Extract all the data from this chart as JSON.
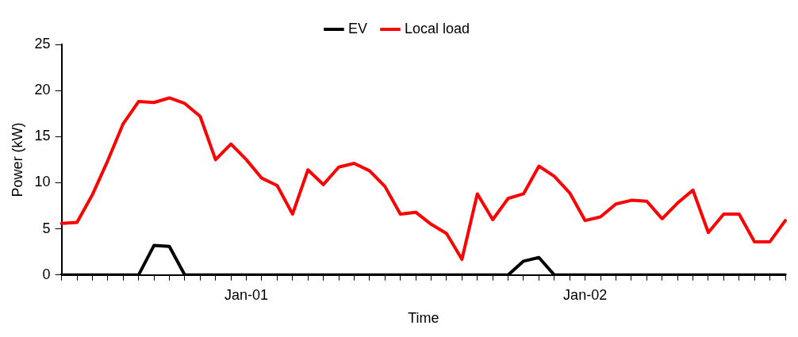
{
  "chart_data": {
    "type": "line",
    "xlabel": "Time",
    "ylabel": "Power (kW)",
    "categories": [
      null,
      null,
      null,
      null,
      null,
      null,
      null,
      null,
      null,
      null,
      null,
      null,
      "Jan-01",
      null,
      null,
      null,
      null,
      null,
      null,
      null,
      null,
      null,
      null,
      null,
      null,
      null,
      null,
      null,
      null,
      null,
      null,
      null,
      null,
      null,
      "Jan-02",
      null,
      null,
      null,
      null,
      null,
      null,
      null,
      null,
      null,
      null,
      null,
      null,
      null
    ],
    "series": [
      {
        "name": "EV",
        "color": "#000000",
        "values": [
          0,
          0,
          0,
          0,
          0,
          0,
          3.2,
          3.1,
          0,
          0,
          0,
          0,
          0,
          0,
          0,
          0,
          0,
          0,
          0,
          0,
          0,
          0,
          0,
          0,
          0,
          0,
          0,
          0,
          0,
          0,
          1.5,
          1.9,
          0,
          0,
          0,
          0,
          0,
          0,
          0,
          0,
          0,
          0,
          0,
          0,
          0,
          0,
          0,
          0
        ]
      },
      {
        "name": "Local load",
        "color": "#ff0000",
        "values": [
          5.6,
          5.7,
          8.7,
          12.4,
          16.4,
          18.8,
          18.7,
          19.2,
          18.6,
          17.2,
          12.5,
          14.2,
          12.5,
          10.5,
          9.7,
          6.6,
          11.4,
          9.8,
          11.7,
          12.1,
          11.3,
          9.6,
          6.6,
          6.8,
          5.5,
          4.5,
          1.7,
          8.8,
          6.0,
          8.3,
          8.8,
          11.8,
          10.7,
          8.9,
          5.9,
          6.3,
          7.7,
          8.1,
          8.0,
          6.1,
          7.8,
          9.2,
          4.6,
          6.6,
          6.6,
          3.6,
          3.6,
          5.9
        ]
      }
    ],
    "ylim": [
      0,
      25
    ],
    "yticks": [
      0,
      5,
      10,
      15,
      20,
      25
    ],
    "grid": false,
    "legend": "top",
    "marker": "none",
    "line_style": "solid"
  }
}
